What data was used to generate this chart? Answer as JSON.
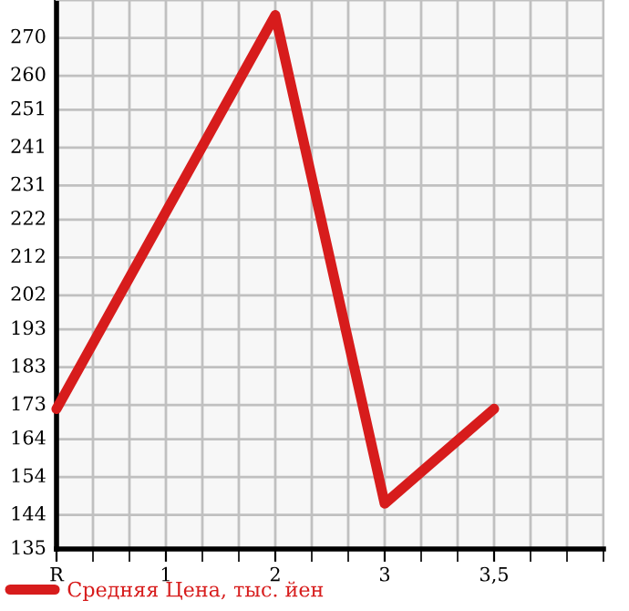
{
  "chart_data": {
    "type": "line",
    "categories": [
      "R",
      "1",
      "2",
      "3",
      "3,5"
    ],
    "series": [
      {
        "name": "Средняя Цена, тыс. йен",
        "color": "#d71c1c",
        "values": [
          172,
          224,
          276,
          147,
          172
        ]
      }
    ],
    "ylim": [
      135,
      280
    ],
    "yticks": [
      135,
      144,
      154,
      164,
      173,
      183,
      193,
      202,
      212,
      222,
      231,
      241,
      251,
      260,
      270,
      {
        "value": 280,
        "label": null
      }
    ],
    "grid": true,
    "legend": "bottom left",
    "marker": "none",
    "line_style": "solid"
  }
}
